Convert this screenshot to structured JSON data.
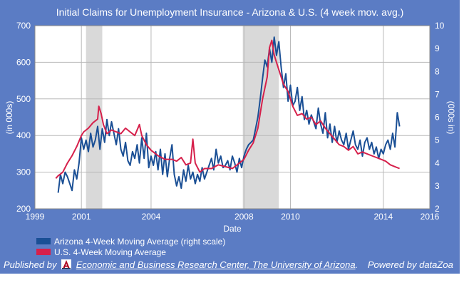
{
  "colors": {
    "background": "#5b7cc4",
    "plot": "#ffffff",
    "recession": "#d9d9d9",
    "arizona": "#1a4f95",
    "us": "#d6204b"
  },
  "footer": {
    "published_by": "Published by",
    "publisher": "Economic and Business Research Center, The University of Arizona",
    "powered_by": "Powered by dataZoa",
    "logo_icon": "university-of-arizona-logo-icon"
  },
  "chart_data": {
    "type": "line",
    "title": "Initial Claims for Unemployment Insurance - Arizona & U.S. (4 week mov. avg.)",
    "xlabel": "Date",
    "ylabel_left": "(in 000s)",
    "ylabel_right": "(000s in)",
    "xlim": [
      1999,
      2016
    ],
    "ylim_left": [
      200,
      700
    ],
    "ylim_right": [
      2,
      10
    ],
    "x_ticks": [
      "1999",
      "2001",
      "2004",
      "2008",
      "2010",
      "2014",
      "2016"
    ],
    "y_ticks_left": [
      "700",
      "600",
      "500",
      "400",
      "300",
      "200"
    ],
    "y_ticks_right": [
      "10",
      "9",
      "8",
      "7",
      "6",
      "5",
      "4",
      "3",
      "2"
    ],
    "grid": true,
    "legend_position": "bottom-left",
    "shaded_periods": [
      [
        2001.2,
        2001.9
      ],
      [
        2007.95,
        2009.5
      ]
    ],
    "series": [
      {
        "name": "Arizona 4-Week Moving Average (right scale)",
        "axis": "right",
        "x": [
          2000.0,
          2000.1,
          2000.2,
          2000.3,
          2000.4,
          2000.5,
          2000.6,
          2000.7,
          2000.8,
          2000.9,
          2001.0,
          2001.1,
          2001.2,
          2001.3,
          2001.4,
          2001.5,
          2001.6,
          2001.7,
          2001.8,
          2001.9,
          2002.0,
          2002.1,
          2002.2,
          2002.3,
          2002.4,
          2002.5,
          2002.6,
          2002.7,
          2002.8,
          2002.9,
          2003.0,
          2003.1,
          2003.2,
          2003.3,
          2003.4,
          2003.5,
          2003.6,
          2003.7,
          2003.8,
          2003.9,
          2004.0,
          2004.1,
          2004.2,
          2004.3,
          2004.4,
          2004.5,
          2004.6,
          2004.7,
          2004.8,
          2004.9,
          2005.0,
          2005.1,
          2005.2,
          2005.3,
          2005.4,
          2005.5,
          2005.6,
          2005.7,
          2005.8,
          2005.9,
          2006.0,
          2006.1,
          2006.2,
          2006.3,
          2006.4,
          2006.5,
          2006.6,
          2006.7,
          2006.8,
          2006.9,
          2007.0,
          2007.1,
          2007.2,
          2007.3,
          2007.4,
          2007.5,
          2007.6,
          2007.7,
          2007.8,
          2007.9,
          2008.0,
          2008.1,
          2008.2,
          2008.3,
          2008.4,
          2008.5,
          2008.6,
          2008.7,
          2008.8,
          2008.9,
          2009.0,
          2009.1,
          2009.2,
          2009.3,
          2009.4,
          2009.5,
          2009.6,
          2009.7,
          2009.8,
          2009.9,
          2010.0,
          2010.1,
          2010.2,
          2010.3,
          2010.4,
          2010.5,
          2010.6,
          2010.7,
          2010.8,
          2010.9,
          2011.0,
          2011.1,
          2011.2,
          2011.3,
          2011.4,
          2011.5,
          2011.6,
          2011.7,
          2011.8,
          2011.9,
          2012.0,
          2012.1,
          2012.2,
          2012.3,
          2012.4,
          2012.5,
          2012.6,
          2012.7,
          2012.8,
          2012.9,
          2013.0,
          2013.1,
          2013.2,
          2013.3,
          2013.4,
          2013.5,
          2013.6,
          2013.7,
          2013.8,
          2013.9,
          2014.0,
          2014.1,
          2014.2,
          2014.3,
          2014.4,
          2014.5,
          2014.6,
          2014.7
        ],
        "values": [
          2.7,
          3.5,
          3.1,
          3.6,
          3.4,
          3.1,
          2.8,
          3.7,
          3.3,
          4.0,
          5.1,
          4.6,
          5.0,
          4.5,
          5.3,
          4.7,
          5.0,
          5.6,
          4.6,
          5.5,
          4.9,
          5.9,
          5.2,
          5.8,
          5.3,
          4.8,
          5.5,
          4.6,
          4.3,
          4.9,
          4.1,
          3.9,
          4.5,
          4.2,
          4.8,
          4.0,
          5.1,
          4.2,
          5.3,
          3.8,
          4.3,
          3.9,
          4.5,
          3.7,
          4.6,
          3.5,
          4.4,
          3.4,
          4.2,
          4.8,
          3.5,
          3.0,
          3.4,
          2.9,
          3.7,
          3.2,
          3.9,
          3.3,
          3.6,
          3.1,
          3.5,
          3.2,
          3.8,
          3.3,
          3.6,
          3.9,
          4.2,
          3.7,
          4.6,
          4.0,
          4.3,
          3.8,
          3.9,
          4.1,
          3.7,
          4.3,
          4.0,
          3.6,
          4.2,
          3.8,
          4.3,
          4.6,
          4.8,
          4.9,
          5.0,
          5.5,
          6.0,
          6.8,
          7.7,
          8.5,
          8.2,
          9.0,
          8.4,
          9.5,
          8.7,
          9.3,
          8.2,
          7.3,
          7.9,
          6.7,
          7.4,
          6.5,
          6.7,
          7.3,
          6.3,
          6.9,
          5.9,
          6.3,
          5.7,
          6.1,
          5.8,
          5.5,
          6.4,
          5.7,
          5.3,
          6.2,
          5.1,
          5.7,
          4.9,
          5.6,
          4.9,
          5.4,
          5.0,
          4.8,
          5.3,
          4.6,
          5.0,
          5.4,
          4.8,
          4.6,
          5.0,
          4.3,
          4.9,
          5.1,
          4.6,
          4.9,
          4.4,
          4.7,
          4.2,
          4.6,
          4.4,
          4.8,
          5.0,
          4.6,
          5.3,
          4.7,
          6.2,
          5.6
        ]
      },
      {
        "name": "U.S. 4-Week Moving Average",
        "axis": "left",
        "x": [
          1999.9,
          2000.0,
          2000.2,
          2000.4,
          2000.6,
          2000.8,
          2001.0,
          2001.1,
          2001.3,
          2001.5,
          2001.7,
          2001.75,
          2001.85,
          2001.95,
          2002.1,
          2002.3,
          2002.5,
          2002.7,
          2002.9,
          2003.1,
          2003.3,
          2003.5,
          2003.6,
          2003.8,
          2004.0,
          2004.3,
          2004.6,
          2004.9,
          2005.1,
          2005.3,
          2005.5,
          2005.7,
          2005.8,
          2005.9,
          2006.1,
          2006.3,
          2006.6,
          2006.9,
          2007.2,
          2007.5,
          2007.8,
          2008.0,
          2008.2,
          2008.4,
          2008.6,
          2008.8,
          2009.0,
          2009.1,
          2009.2,
          2009.3,
          2009.4,
          2009.55,
          2009.7,
          2009.9,
          2010.1,
          2010.3,
          2010.5,
          2010.7,
          2010.9,
          2011.1,
          2011.3,
          2011.5,
          2011.7,
          2011.9,
          2012.1,
          2012.3,
          2012.5,
          2012.7,
          2012.9,
          2013.1,
          2013.3,
          2013.5,
          2013.7,
          2013.9,
          2014.1,
          2014.3,
          2014.5,
          2014.7
        ],
        "values": [
          283,
          290,
          300,
          325,
          345,
          370,
          400,
          410,
          420,
          435,
          445,
          480,
          460,
          430,
          405,
          415,
          410,
          405,
          420,
          410,
          400,
          430,
          400,
          375,
          360,
          345,
          335,
          335,
          330,
          340,
          320,
          325,
          390,
          325,
          300,
          310,
          310,
          320,
          315,
          310,
          325,
          335,
          360,
          380,
          420,
          500,
          560,
          640,
          660,
          620,
          600,
          570,
          540,
          520,
          480,
          455,
          460,
          445,
          450,
          430,
          440,
          420,
          405,
          390,
          375,
          370,
          360,
          370,
          350,
          355,
          350,
          345,
          340,
          335,
          330,
          320,
          315,
          310
        ]
      }
    ]
  }
}
